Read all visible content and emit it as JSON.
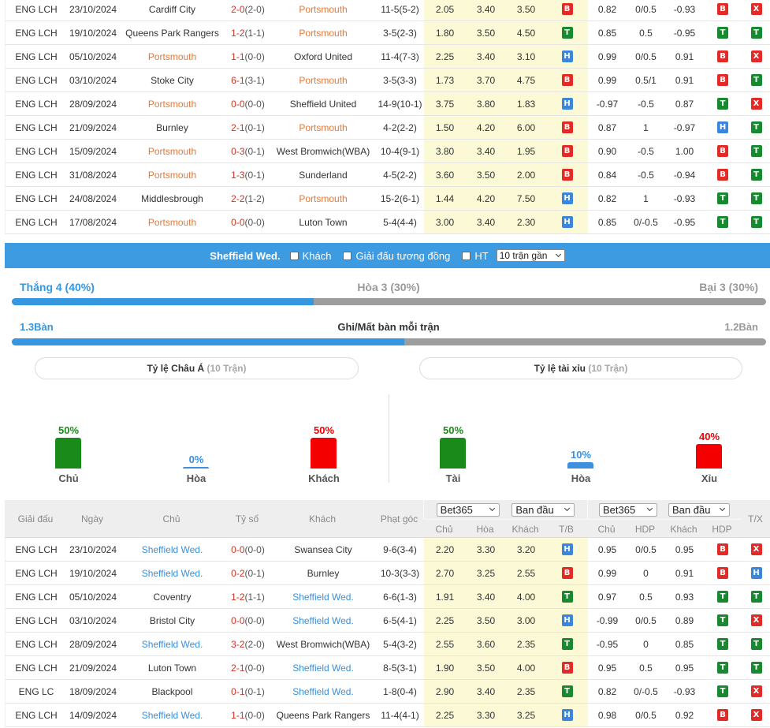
{
  "top_table": {
    "team_color": "#e4793a",
    "rows": [
      {
        "league": "ENG LCH",
        "date": "23/10/2024",
        "home": "Cardiff City",
        "score": "2-0",
        "ht": "(2-0)",
        "away": "Portsmouth",
        "corners": "11-5(5-2)",
        "o_home": "2.05",
        "o_draw": "3.40",
        "o_away": "3.50",
        "tb": "B",
        "h_home": "0.82",
        "h_line": "0/0.5",
        "h_away": "-0.93",
        "hdp": "B",
        "tx": "X",
        "hl_home": false
      },
      {
        "league": "ENG LCH",
        "date": "19/10/2024",
        "home": "Queens Park Rangers",
        "score": "1-2",
        "ht": "(1-1)",
        "away": "Portsmouth",
        "corners": "3-5(2-3)",
        "o_home": "1.80",
        "o_draw": "3.50",
        "o_away": "4.50",
        "tb": "T",
        "h_home": "0.85",
        "h_line": "0.5",
        "h_away": "-0.95",
        "hdp": "T",
        "tx": "T",
        "hl_home": false
      },
      {
        "league": "ENG LCH",
        "date": "05/10/2024",
        "home": "Portsmouth",
        "score": "1-1",
        "ht": "(0-0)",
        "away": "Oxford United",
        "corners": "11-4(7-3)",
        "o_home": "2.25",
        "o_draw": "3.40",
        "o_away": "3.10",
        "tb": "H",
        "h_home": "0.99",
        "h_line": "0/0.5",
        "h_away": "0.91",
        "hdp": "B",
        "tx": "X",
        "hl_home": true
      },
      {
        "league": "ENG LCH",
        "date": "03/10/2024",
        "home": "Stoke City",
        "score": "6-1",
        "ht": "(3-1)",
        "away": "Portsmouth",
        "corners": "3-5(3-3)",
        "o_home": "1.73",
        "o_draw": "3.70",
        "o_away": "4.75",
        "tb": "B",
        "h_home": "0.99",
        "h_line": "0.5/1",
        "h_away": "0.91",
        "hdp": "B",
        "tx": "T",
        "hl_home": false
      },
      {
        "league": "ENG LCH",
        "date": "28/09/2024",
        "home": "Portsmouth",
        "score": "0-0",
        "ht": "(0-0)",
        "away": "Sheffield United",
        "corners": "14-9(10-1)",
        "o_home": "3.75",
        "o_draw": "3.80",
        "o_away": "1.83",
        "tb": "H",
        "h_home": "-0.97",
        "h_line": "-0.5",
        "h_away": "0.87",
        "hdp": "T",
        "tx": "X",
        "hl_home": true
      },
      {
        "league": "ENG LCH",
        "date": "21/09/2024",
        "home": "Burnley",
        "score": "2-1",
        "ht": "(0-1)",
        "away": "Portsmouth",
        "corners": "4-2(2-2)",
        "o_home": "1.50",
        "o_draw": "4.20",
        "o_away": "6.00",
        "tb": "B",
        "h_home": "0.87",
        "h_line": "1",
        "h_away": "-0.97",
        "hdp": "H",
        "tx": "T",
        "hl_home": false
      },
      {
        "league": "ENG LCH",
        "date": "15/09/2024",
        "home": "Portsmouth",
        "score": "0-3",
        "ht": "(0-1)",
        "away": "West Bromwich(WBA)",
        "corners": "10-4(9-1)",
        "o_home": "3.80",
        "o_draw": "3.40",
        "o_away": "1.95",
        "tb": "B",
        "h_home": "0.90",
        "h_line": "-0.5",
        "h_away": "1.00",
        "hdp": "B",
        "tx": "T",
        "hl_home": true
      },
      {
        "league": "ENG LCH",
        "date": "31/08/2024",
        "home": "Portsmouth",
        "score": "1-3",
        "ht": "(0-1)",
        "away": "Sunderland",
        "corners": "4-5(2-2)",
        "o_home": "3.60",
        "o_draw": "3.50",
        "o_away": "2.00",
        "tb": "B",
        "h_home": "0.84",
        "h_line": "-0.5",
        "h_away": "-0.94",
        "hdp": "B",
        "tx": "T",
        "hl_home": true
      },
      {
        "league": "ENG LCH",
        "date": "24/08/2024",
        "home": "Middlesbrough",
        "score": "2-2",
        "ht": "(1-2)",
        "away": "Portsmouth",
        "corners": "15-2(6-1)",
        "o_home": "1.44",
        "o_draw": "4.20",
        "o_away": "7.50",
        "tb": "H",
        "h_home": "0.82",
        "h_line": "1",
        "h_away": "-0.93",
        "hdp": "T",
        "tx": "T",
        "hl_home": false
      },
      {
        "league": "ENG LCH",
        "date": "17/08/2024",
        "home": "Portsmouth",
        "score": "0-0",
        "ht": "(0-0)",
        "away": "Luton Town",
        "corners": "5-4(4-4)",
        "o_home": "3.00",
        "o_draw": "3.40",
        "o_away": "2.30",
        "tb": "H",
        "h_home": "0.85",
        "h_line": "0/-0.5",
        "h_away": "-0.95",
        "hdp": "T",
        "tx": "T",
        "hl_home": true
      }
    ]
  },
  "filter_bar": {
    "team": "Sheffield Wed.",
    "away_label": "Khách",
    "same_league_label": "Giải đấu tương đồng",
    "ht_label": "HT",
    "recent_select": "10 trận gần",
    "color": "#3c9be1"
  },
  "summary": {
    "win_label": "Thắng 4 (40%)",
    "draw_label": "Hòa 3 (30%)",
    "loss_label": "Bại 3 (30%)",
    "win_share": 0.4,
    "goals_for_label": "1.3Bàn",
    "goals_title": "Ghi/Mất bàn mỗi trận",
    "goals_against_label": "1.2Bàn",
    "goals_for": 1.3,
    "goals_against": 1.2
  },
  "asian_handicap": {
    "title": "Tỷ lệ Châu Á",
    "count": "(10 Trận)",
    "bars": [
      {
        "label": "Chủ",
        "pct_label": "50%",
        "pct": 50,
        "color": "#1a8a1a"
      },
      {
        "label": "Hòa",
        "pct_label": "0%",
        "pct": 0,
        "color": "#3d8fe0"
      },
      {
        "label": "Khách",
        "pct_label": "50%",
        "pct": 50,
        "color": "#f50000"
      }
    ]
  },
  "over_under": {
    "title": "Tỷ lệ tài xỉu",
    "count": "(10 Trận)",
    "bars": [
      {
        "label": "Tài",
        "pct_label": "50%",
        "pct": 50,
        "color": "#1a8a1a"
      },
      {
        "label": "Hòa",
        "pct_label": "10%",
        "pct": 10,
        "color": "#3d8fe0"
      },
      {
        "label": "Xỉu",
        "pct_label": "40%",
        "pct": 40,
        "color": "#f50000"
      }
    ]
  },
  "bottom_table": {
    "team_color": "#3a8fd9",
    "header": {
      "league": "Giải đấu",
      "date": "Ngày",
      "home": "Chủ",
      "score": "Tỷ số",
      "away": "Khách",
      "corners": "Phạt góc",
      "odds_company": "Bet365",
      "odds_type": "Ban đầu",
      "sub1": [
        "Chủ",
        "Hòa",
        "Khách",
        "T/B"
      ],
      "hdp_company": "Bet365",
      "hdp_type": "Ban đầu",
      "sub2": [
        "Chủ",
        "HDP",
        "Khách",
        "HDP"
      ],
      "tx": "T/X"
    },
    "rows": [
      {
        "league": "ENG LCH",
        "date": "23/10/2024",
        "home": "Sheffield Wed.",
        "score": "0-0",
        "ht": "(0-0)",
        "away": "Swansea City",
        "corners": "9-6(3-4)",
        "o_home": "2.20",
        "o_draw": "3.30",
        "o_away": "3.20",
        "tb": "H",
        "h_home": "0.95",
        "h_line": "0/0.5",
        "h_away": "0.95",
        "hdp": "B",
        "tx": "X",
        "hl_home": true
      },
      {
        "league": "ENG LCH",
        "date": "19/10/2024",
        "home": "Sheffield Wed.",
        "score": "0-2",
        "ht": "(0-1)",
        "away": "Burnley",
        "corners": "10-3(3-3)",
        "o_home": "2.70",
        "o_draw": "3.25",
        "o_away": "2.55",
        "tb": "B",
        "h_home": "0.99",
        "h_line": "0",
        "h_away": "0.91",
        "hdp": "B",
        "tx": "H",
        "hl_home": true
      },
      {
        "league": "ENG LCH",
        "date": "05/10/2024",
        "home": "Coventry",
        "score": "1-2",
        "ht": "(1-1)",
        "away": "Sheffield Wed.",
        "corners": "6-6(1-3)",
        "o_home": "1.91",
        "o_draw": "3.40",
        "o_away": "4.00",
        "tb": "T",
        "h_home": "0.97",
        "h_line": "0.5",
        "h_away": "0.93",
        "hdp": "T",
        "tx": "T",
        "hl_home": false
      },
      {
        "league": "ENG LCH",
        "date": "03/10/2024",
        "home": "Bristol City",
        "score": "0-0",
        "ht": "(0-0)",
        "away": "Sheffield Wed.",
        "corners": "6-5(4-1)",
        "o_home": "2.25",
        "o_draw": "3.50",
        "o_away": "3.00",
        "tb": "H",
        "h_home": "-0.99",
        "h_line": "0/0.5",
        "h_away": "0.89",
        "hdp": "T",
        "tx": "X",
        "hl_home": false
      },
      {
        "league": "ENG LCH",
        "date": "28/09/2024",
        "home": "Sheffield Wed.",
        "score": "3-2",
        "ht": "(2-0)",
        "away": "West Bromwich(WBA)",
        "corners": "5-4(3-2)",
        "o_home": "2.55",
        "o_draw": "3.60",
        "o_away": "2.35",
        "tb": "T",
        "h_home": "-0.95",
        "h_line": "0",
        "h_away": "0.85",
        "hdp": "T",
        "tx": "T",
        "hl_home": true
      },
      {
        "league": "ENG LCH",
        "date": "21/09/2024",
        "home": "Luton Town",
        "score": "2-1",
        "ht": "(0-0)",
        "away": "Sheffield Wed.",
        "corners": "8-5(3-1)",
        "o_home": "1.90",
        "o_draw": "3.50",
        "o_away": "4.00",
        "tb": "B",
        "h_home": "0.95",
        "h_line": "0.5",
        "h_away": "0.95",
        "hdp": "T",
        "tx": "T",
        "hl_home": false
      },
      {
        "league": "ENG LC",
        "date": "18/09/2024",
        "home": "Blackpool",
        "score": "0-1",
        "ht": "(0-1)",
        "away": "Sheffield Wed.",
        "corners": "1-8(0-4)",
        "o_home": "2.90",
        "o_draw": "3.40",
        "o_away": "2.35",
        "tb": "T",
        "h_home": "0.82",
        "h_line": "0/-0.5",
        "h_away": "-0.93",
        "hdp": "T",
        "tx": "X",
        "hl_home": false
      },
      {
        "league": "ENG LCH",
        "date": "14/09/2024",
        "home": "Sheffield Wed.",
        "score": "1-1",
        "ht": "(0-0)",
        "away": "Queens Park Rangers",
        "corners": "11-4(4-1)",
        "o_home": "2.25",
        "o_draw": "3.30",
        "o_away": "3.25",
        "tb": "H",
        "h_home": "0.98",
        "h_line": "0/0.5",
        "h_away": "0.92",
        "hdp": "B",
        "tx": "X",
        "hl_home": true
      }
    ]
  }
}
